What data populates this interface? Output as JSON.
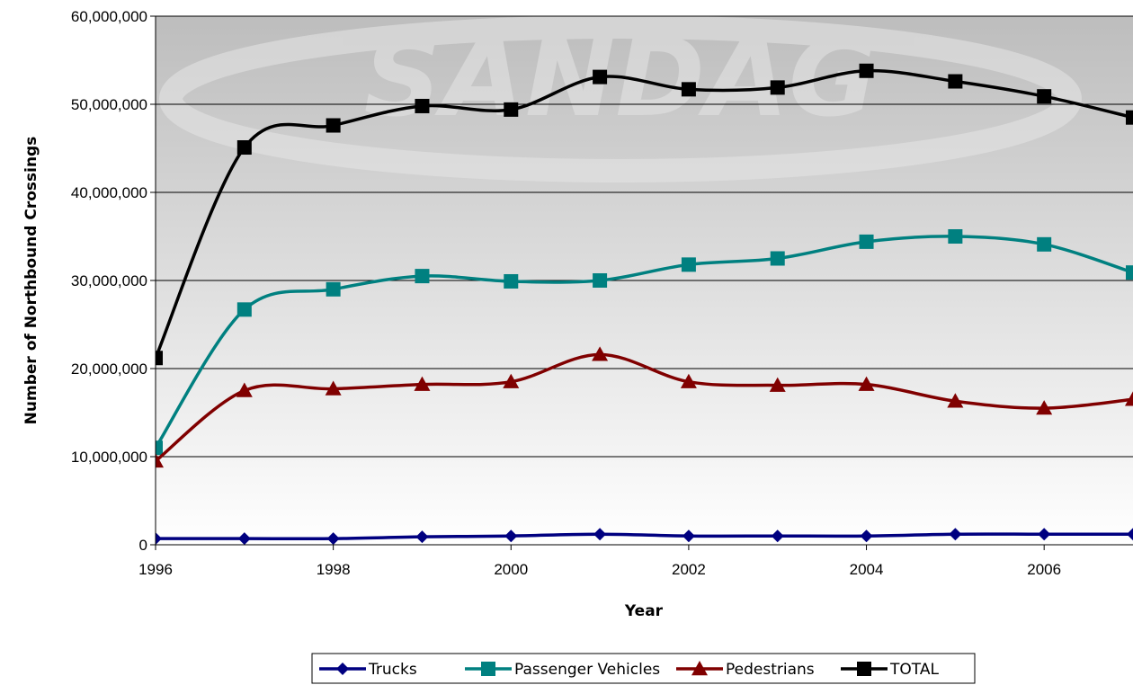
{
  "chart_data": {
    "type": "line",
    "title": "",
    "xlabel": "Year",
    "ylabel": "Number of Northbound Crossings",
    "xlim": [
      1996,
      2007
    ],
    "ylim": [
      0,
      60000000
    ],
    "x_ticks": [
      1996,
      1998,
      2000,
      2002,
      2004,
      2006
    ],
    "x_tick_labels": [
      "1996",
      "1998",
      "2000",
      "2002",
      "2004",
      "2006"
    ],
    "y_ticks": [
      0,
      10000000,
      20000000,
      30000000,
      40000000,
      50000000,
      60000000
    ],
    "y_tick_labels": [
      "0",
      "10,000,000",
      "20,000,000",
      "30,000,000",
      "40,000,000",
      "50,000,000",
      "60,000,000"
    ],
    "grid": true,
    "legend_position": "bottom",
    "watermark": "SANDAG",
    "x": [
      1996,
      1997,
      1998,
      1999,
      2000,
      2001,
      2002,
      2003,
      2004,
      2005,
      2006,
      2007
    ],
    "series": [
      {
        "name": "Trucks",
        "color": "#000080",
        "marker": "diamond",
        "values": [
          700000,
          700000,
          700000,
          900000,
          1000000,
          1200000,
          1000000,
          1000000,
          1000000,
          1200000,
          1200000,
          1200000
        ]
      },
      {
        "name": "Passenger Vehicles",
        "color": "#008080",
        "marker": "square",
        "values": [
          11000000,
          26700000,
          29000000,
          30500000,
          29900000,
          30000000,
          31800000,
          32500000,
          34400000,
          35000000,
          34100000,
          30900000
        ]
      },
      {
        "name": "Pedestrians",
        "color": "#800000",
        "marker": "triangle",
        "values": [
          9500000,
          17500000,
          17700000,
          18200000,
          18500000,
          21600000,
          18500000,
          18100000,
          18200000,
          16300000,
          15500000,
          16500000
        ]
      },
      {
        "name": "TOTAL",
        "color": "#000000",
        "marker": "square",
        "values": [
          21200000,
          45100000,
          47600000,
          49800000,
          49400000,
          53100000,
          51700000,
          51900000,
          53800000,
          52600000,
          50900000,
          48500000
        ]
      }
    ]
  }
}
